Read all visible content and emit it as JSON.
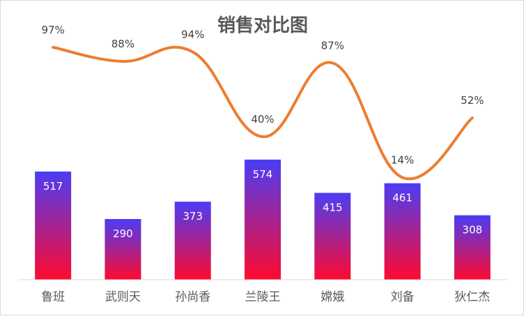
{
  "chart_data": {
    "type": "bar",
    "title": "销售对比图",
    "categories": [
      "鲁班",
      "武则天",
      "孙尚香",
      "兰陵王",
      "嫦娥",
      "刘备",
      "狄仁杰"
    ],
    "series": [
      {
        "type": "bar",
        "values": [
          517,
          290,
          373,
          574,
          415,
          461,
          308
        ],
        "value_labels": [
          "517",
          "290",
          "373",
          "574",
          "415",
          "461",
          "308"
        ],
        "gradient": {
          "top": "#4B3CF5",
          "bottom": "#FF0A2E"
        }
      },
      {
        "type": "line",
        "smooth": true,
        "values": [
          0.97,
          0.88,
          0.94,
          0.4,
          0.87,
          0.14,
          0.52
        ],
        "value_labels": [
          "97%",
          "88%",
          "94%",
          "40%",
          "87%",
          "14%",
          "52%"
        ],
        "color": "#ED7D31"
      }
    ],
    "bar_ylim": [
      0,
      700
    ],
    "grid": false,
    "legend": "none"
  }
}
